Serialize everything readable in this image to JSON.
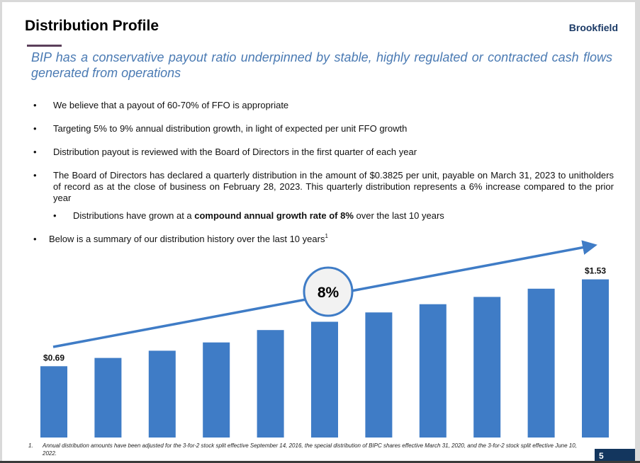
{
  "header": {
    "title": "Distribution Profile",
    "brand": "Brookfield",
    "subtitle": "BIP has a conservative payout ratio underpinned by stable, highly regulated or contracted cash flows generated from operations"
  },
  "colors": {
    "brand": "#1b3a66",
    "accent_rule": "#5b3f5a",
    "subtitle": "#4a7ab3",
    "bar": "#3f7cc6",
    "cagr_circle_fill": "#f2f2f2",
    "page_number_bg": "#13365e"
  },
  "bullets": [
    {
      "marker": "•",
      "text": "We believe that a payout of 60-70% of FFO is appropriate"
    },
    {
      "marker": "•",
      "text": "Targeting 5% to 9% annual distribution growth, in light of expected per unit FFO growth"
    },
    {
      "marker": "•",
      "text": "Distribution payout is reviewed with the Board of Directors in the first quarter of each year"
    },
    {
      "marker": "•",
      "text": "The Board of Directors has declared a quarterly distribution in the amount of $0.3825 per unit, payable on March 31, 2023 to unitholders of record as at the close of business on February 28, 2023. This quarterly distribution represents a 6% increase compared to the prior year"
    },
    {
      "marker": "•",
      "text_before": "Distributions have grown at a ",
      "text_bold": "compound annual growth rate of 8%",
      "text_after": " over the last 10 years"
    },
    {
      "marker": "•",
      "text": "Below is a summary of our distribution history over the last 10 years",
      "superscript": "1"
    }
  ],
  "chart_data": {
    "type": "bar",
    "title": "",
    "xlabel": "",
    "ylabel": "",
    "categories": [
      "Year 1",
      "Year 2",
      "Year 3",
      "Year 4",
      "Year 5",
      "Year 6",
      "Year 7",
      "Year 8",
      "Year 9",
      "Year 10",
      "Year 11"
    ],
    "category_labels_visible": false,
    "values": [
      0.69,
      0.77,
      0.84,
      0.92,
      1.04,
      1.12,
      1.21,
      1.29,
      1.36,
      1.44,
      1.53
    ],
    "value_labels": [
      {
        "index": 0,
        "text": "$0.69"
      },
      {
        "index": 10,
        "text": "$1.53"
      }
    ],
    "units": "USD per unit (annual distribution)",
    "ylim": [
      0,
      1.6
    ],
    "grid": false,
    "axes_visible": false,
    "legend": "none",
    "annotations": [
      {
        "type": "trend-arrow",
        "label": "8%",
        "meaning": "compound annual growth rate"
      }
    ]
  },
  "footnote": {
    "number": "1.",
    "text": "Annual distribution amounts have been adjusted for the 3-for-2 stock split effective September 14, 2016, the special distribution of BIPC shares effective March 31, 2020, and the 3-for-2 stock split effective June 10, 2022."
  },
  "page_number": "5"
}
